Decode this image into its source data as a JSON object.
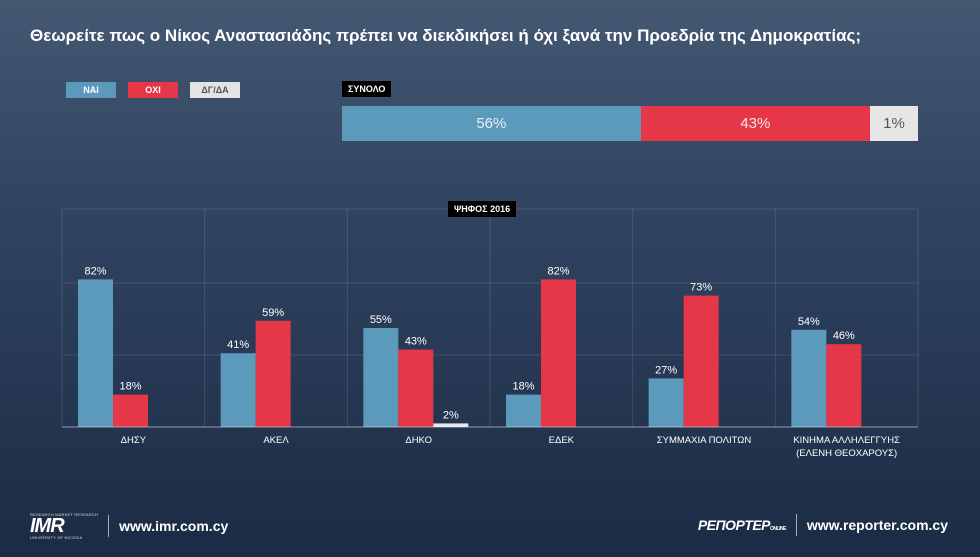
{
  "title": "Θεωρείτε πως ο Νίκος Αναστασιάδης πρέπει να διεκδικήσει ή όχι ξανά την Προεδρία της Δημοκρατίας;",
  "legend": {
    "nai": "ΝΑΙ",
    "oxi": "ΟΧΙ",
    "dg": "ΔΓ/ΔΑ"
  },
  "total": {
    "label": "ΣΥΝΟΛΟ",
    "nai": "56%",
    "oxi": "43%",
    "dg": "1%"
  },
  "vote_label": "ΨΗΦΟΣ 2016",
  "colors": {
    "nai": "#5b9aba",
    "oxi": "#e63748",
    "dg": "#e6e6e6"
  },
  "chart_data": {
    "type": "bar",
    "title": "ΨΗΦΟΣ 2016",
    "categories": [
      "ΔΗΣΥ",
      "ΑΚΕΛ",
      "ΔΗΚΟ",
      "ΕΔΕΚ",
      "ΣΥΜΜΑΧΙΑ ΠΟΛΙΤΩΝ",
      "ΚΙΝΗΜΑ ΑΛΛΗΛΕΓΓΥΗΣ (ΕΛΕΝΗ ΘΕΟΧΑΡΟΥΣ)"
    ],
    "series": [
      {
        "name": "ΝΑΙ",
        "values": [
          82,
          41,
          55,
          18,
          27,
          54
        ]
      },
      {
        "name": "ΟΧΙ",
        "values": [
          18,
          59,
          43,
          82,
          73,
          46
        ]
      },
      {
        "name": "ΔΓ/ΔΑ",
        "values": [
          0,
          0,
          2,
          0,
          0,
          0
        ]
      }
    ],
    "unit": "%",
    "ylim": [
      0,
      100
    ],
    "grid": true
  },
  "footer": {
    "imr_small": "RESEARCH MARKET RESEARCH",
    "imr_logo": "IMR",
    "imr_sub": "UNIVERSITY OF NICOSIA",
    "imr_site": "www.imr.com.cy",
    "reporter_logo": "ΡΕΠΟΡΤΕΡ",
    "reporter_sup": "ONLINE",
    "reporter_site": "www.reporter.com.cy"
  }
}
